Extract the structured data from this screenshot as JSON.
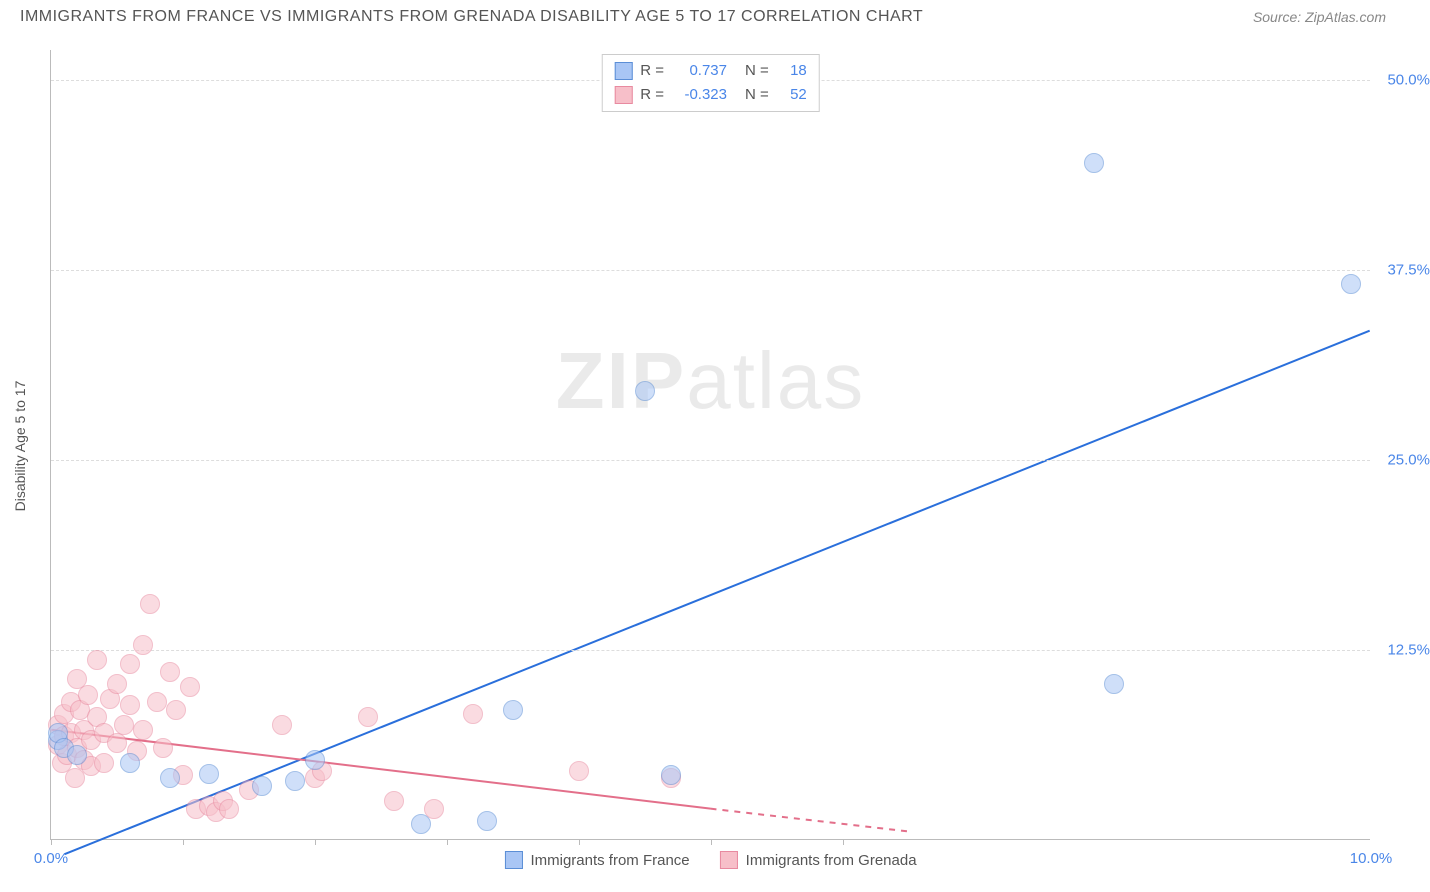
{
  "header": {
    "title": "IMMIGRANTS FROM FRANCE VS IMMIGRANTS FROM GRENADA DISABILITY AGE 5 TO 17 CORRELATION CHART",
    "source_prefix": "Source: ",
    "source_name": "ZipAtlas.com"
  },
  "watermark": {
    "bold": "ZIP",
    "rest": "atlas"
  },
  "chart": {
    "type": "scatter",
    "y_axis_title": "Disability Age 5 to 17",
    "background_color": "#ffffff",
    "grid_color": "#dddddd",
    "axis_color": "#bbbbbb",
    "xlim": [
      0,
      10
    ],
    "ylim": [
      0,
      52
    ],
    "x_ticks": [
      0,
      1,
      2,
      3,
      4,
      5,
      6
    ],
    "x_tick_labels": {
      "0": "0.0%",
      "10": "10.0%"
    },
    "x_tick_label_color": "#4a86e8",
    "y_ticks": [
      12.5,
      25.0,
      37.5,
      50.0
    ],
    "y_tick_labels": [
      "12.5%",
      "25.0%",
      "37.5%",
      "50.0%"
    ],
    "y_tick_label_color": "#4a86e8",
    "marker_radius": 10,
    "marker_opacity": 0.55,
    "marker_stroke_width": 1.2,
    "series": [
      {
        "name": "Immigrants from France",
        "color_fill": "#a9c6f5",
        "color_stroke": "#5b8ed6",
        "r_value": "0.737",
        "n_value": "18",
        "trend": {
          "x1": 0.1,
          "y1": -1,
          "x2": 10,
          "y2": 33.5,
          "color": "#2a6fdb",
          "width": 2,
          "dash": ""
        },
        "points": [
          [
            0.05,
            6.5
          ],
          [
            0.05,
            7.0
          ],
          [
            0.1,
            6.0
          ],
          [
            0.2,
            5.5
          ],
          [
            0.6,
            5.0
          ],
          [
            0.9,
            4.0
          ],
          [
            1.2,
            4.3
          ],
          [
            1.6,
            3.5
          ],
          [
            1.85,
            3.8
          ],
          [
            2.0,
            5.2
          ],
          [
            2.8,
            1.0
          ],
          [
            3.3,
            1.2
          ],
          [
            3.5,
            8.5
          ],
          [
            4.5,
            29.5
          ],
          [
            4.7,
            4.2
          ],
          [
            7.9,
            44.5
          ],
          [
            8.05,
            10.2
          ],
          [
            9.85,
            36.5
          ]
        ]
      },
      {
        "name": "Immigrants from Grenada",
        "color_fill": "#f7bfc9",
        "color_stroke": "#e88aa0",
        "r_value": "-0.323",
        "n_value": "52",
        "trend": {
          "x1": 0,
          "y1": 7.2,
          "x2": 5.0,
          "y2": 2.0,
          "color": "#e36f8a",
          "width": 2,
          "dash": "",
          "dash_ext": {
            "x1": 5.0,
            "y1": 2.0,
            "x2": 6.5,
            "y2": 0.5,
            "dash": "6,6"
          }
        },
        "points": [
          [
            0.05,
            6.2
          ],
          [
            0.05,
            7.5
          ],
          [
            0.08,
            5.0
          ],
          [
            0.1,
            6.8
          ],
          [
            0.1,
            8.2
          ],
          [
            0.12,
            5.5
          ],
          [
            0.15,
            7.0
          ],
          [
            0.15,
            9.0
          ],
          [
            0.18,
            4.0
          ],
          [
            0.2,
            10.5
          ],
          [
            0.2,
            6.0
          ],
          [
            0.22,
            8.5
          ],
          [
            0.25,
            7.2
          ],
          [
            0.25,
            5.2
          ],
          [
            0.28,
            9.5
          ],
          [
            0.3,
            6.5
          ],
          [
            0.3,
            4.8
          ],
          [
            0.35,
            8.0
          ],
          [
            0.35,
            11.8
          ],
          [
            0.4,
            7.0
          ],
          [
            0.4,
            5.0
          ],
          [
            0.45,
            9.2
          ],
          [
            0.5,
            6.3
          ],
          [
            0.5,
            10.2
          ],
          [
            0.55,
            7.5
          ],
          [
            0.6,
            11.5
          ],
          [
            0.6,
            8.8
          ],
          [
            0.65,
            5.8
          ],
          [
            0.7,
            12.8
          ],
          [
            0.7,
            7.2
          ],
          [
            0.75,
            15.5
          ],
          [
            0.8,
            9.0
          ],
          [
            0.85,
            6.0
          ],
          [
            0.9,
            11.0
          ],
          [
            0.95,
            8.5
          ],
          [
            1.0,
            4.2
          ],
          [
            1.05,
            10.0
          ],
          [
            1.1,
            2.0
          ],
          [
            1.2,
            2.2
          ],
          [
            1.25,
            1.8
          ],
          [
            1.3,
            2.5
          ],
          [
            1.35,
            2.0
          ],
          [
            1.5,
            3.2
          ],
          [
            1.75,
            7.5
          ],
          [
            2.0,
            4.0
          ],
          [
            2.05,
            4.5
          ],
          [
            2.4,
            8.0
          ],
          [
            2.6,
            2.5
          ],
          [
            2.9,
            2.0
          ],
          [
            3.2,
            8.2
          ],
          [
            4.0,
            4.5
          ],
          [
            4.7,
            4.0
          ]
        ]
      }
    ],
    "legend_top": {
      "r_label": "R =",
      "n_label": "N =",
      "text_color": "#555555",
      "value_color": "#4a86e8"
    },
    "legend_bottom_labels": [
      "Immigrants from France",
      "Immigrants from Grenada"
    ]
  }
}
